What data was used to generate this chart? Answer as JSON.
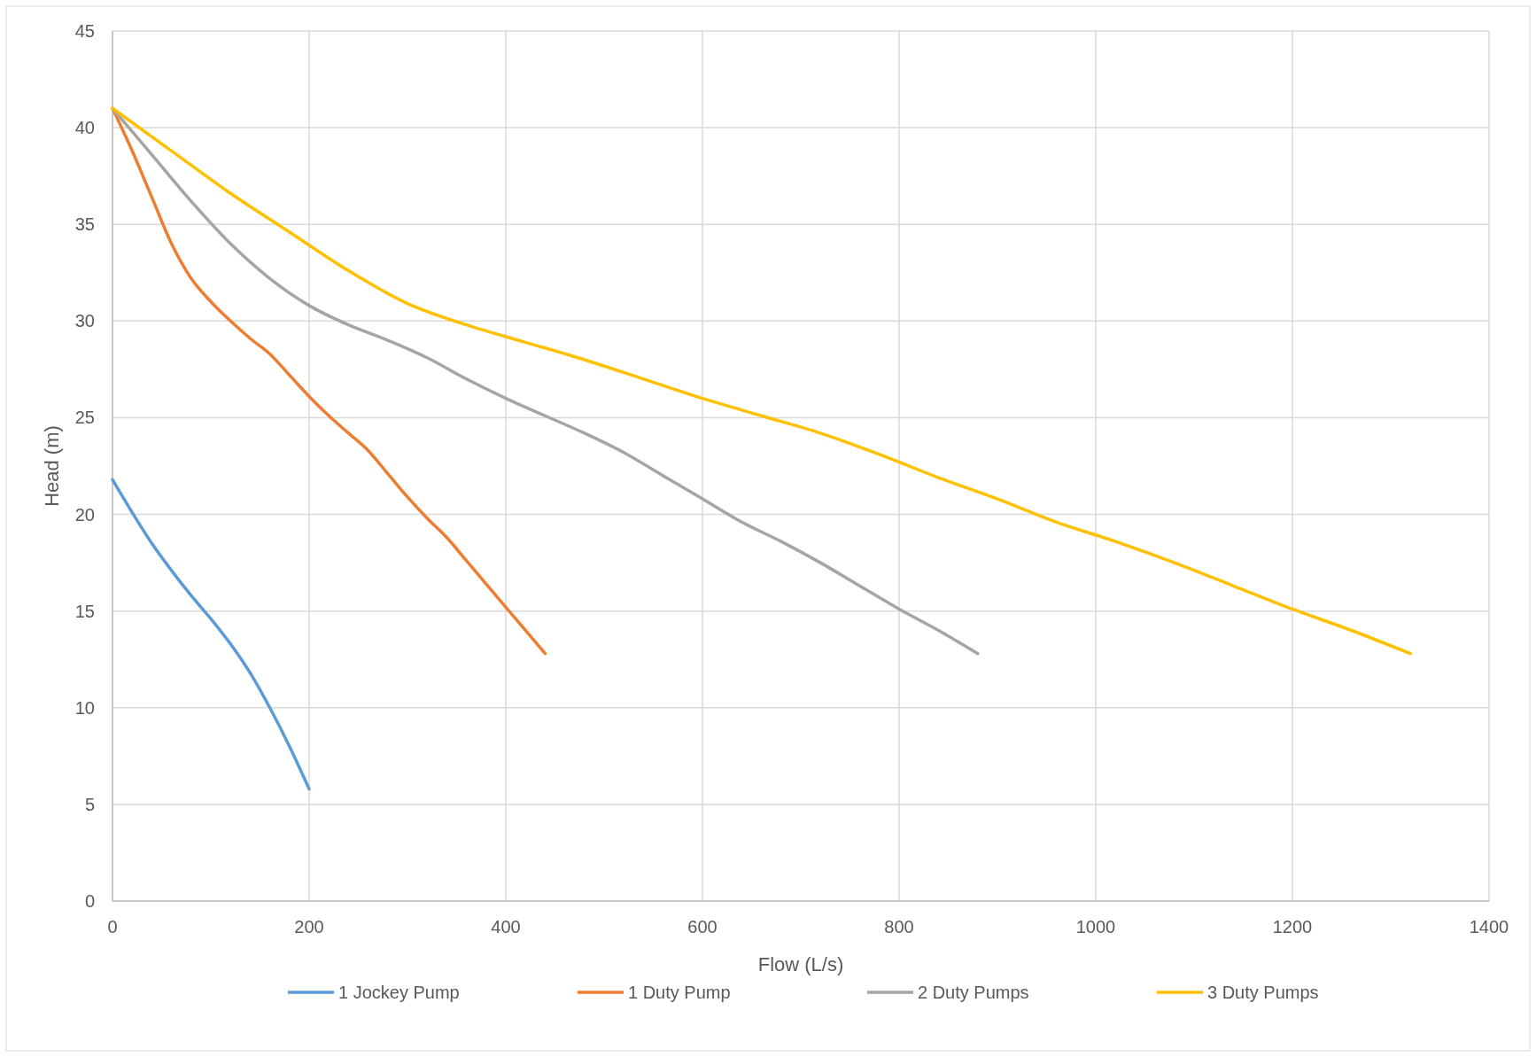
{
  "chart_data": {
    "type": "line",
    "xlabel": "Flow (L/s)",
    "ylabel": "Head (m)",
    "xlim": [
      0,
      1400
    ],
    "xticks": [
      0,
      200,
      400,
      600,
      800,
      1000,
      1200,
      1400
    ],
    "ylim": [
      0,
      45
    ],
    "yticks": [
      0,
      5,
      10,
      15,
      20,
      25,
      30,
      35,
      40,
      45
    ],
    "grid": true,
    "legend": "bottom",
    "marker": "none",
    "line_style": "solid",
    "series": [
      {
        "name": "1 Jockey Pump",
        "color": "#5b9bd5",
        "x": [
          0,
          20,
          40,
          60,
          80,
          100,
          120,
          140,
          160,
          180,
          200
        ],
        "values": [
          21.8,
          20.1,
          18.5,
          17.1,
          15.8,
          14.6,
          13.3,
          11.8,
          10,
          8,
          5.8
        ]
      },
      {
        "name": "1 Duty Pump",
        "color": "#ed7d31",
        "x": [
          0,
          20,
          40,
          60,
          80,
          100,
          120,
          140,
          160,
          180,
          200,
          220,
          240,
          260,
          280,
          300,
          320,
          340,
          360,
          380,
          400,
          420,
          440
        ],
        "values": [
          41,
          38.8,
          36.4,
          34,
          32.2,
          31,
          30,
          29.1,
          28.3,
          27.2,
          26.1,
          25.1,
          24.2,
          23.3,
          22.1,
          20.9,
          19.8,
          18.8,
          17.6,
          16.4,
          15.2,
          14,
          12.8
        ]
      },
      {
        "name": "2 Duty Pumps",
        "color": "#a5a5a5",
        "x": [
          0,
          40,
          80,
          120,
          160,
          200,
          240,
          280,
          320,
          360,
          400,
          440,
          480,
          520,
          560,
          600,
          640,
          680,
          720,
          760,
          800,
          840,
          880
        ],
        "values": [
          41,
          38.6,
          36.2,
          34,
          32.2,
          30.8,
          29.8,
          29,
          28.1,
          27,
          26,
          25.1,
          24.2,
          23.2,
          22,
          20.8,
          19.6,
          18.6,
          17.5,
          16.3,
          15.1,
          14,
          12.8
        ]
      },
      {
        "name": "3 Duty Pumps",
        "color": "#ffc000",
        "x": [
          0,
          60,
          120,
          180,
          240,
          300,
          360,
          420,
          480,
          540,
          600,
          660,
          720,
          780,
          840,
          900,
          960,
          1020,
          1080,
          1140,
          1200,
          1260,
          1320
        ],
        "values": [
          41,
          38.8,
          36.6,
          34.6,
          32.6,
          30.9,
          29.8,
          28.9,
          28,
          27,
          26,
          25.1,
          24.2,
          23.1,
          21.9,
          20.8,
          19.6,
          18.6,
          17.5,
          16.3,
          15.1,
          14,
          12.8
        ]
      }
    ]
  }
}
